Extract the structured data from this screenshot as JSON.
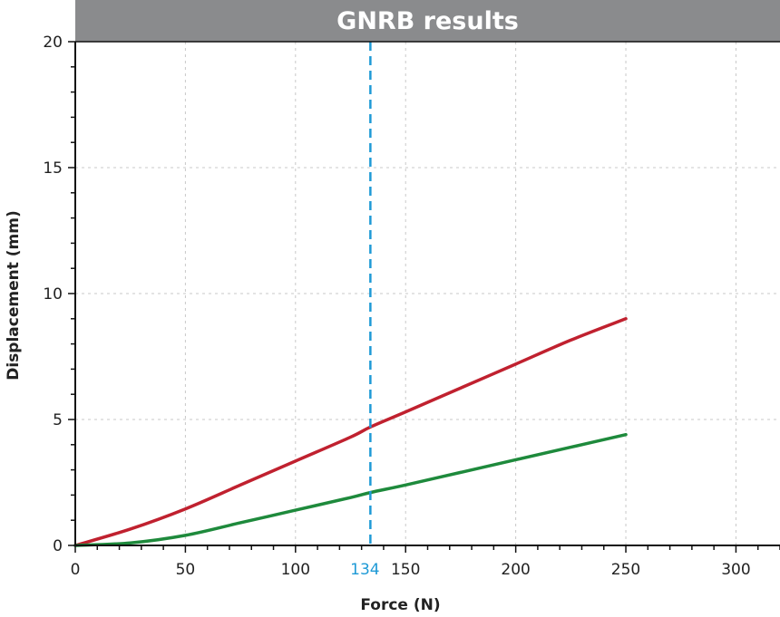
{
  "chart_data": {
    "type": "line",
    "title": "GNRB results",
    "xlabel": "Force (N)",
    "ylabel": "Displacement (mm)",
    "xlim": [
      0,
      320
    ],
    "ylim": [
      0,
      20
    ],
    "x_ticks": [
      0,
      50,
      100,
      150,
      200,
      250,
      300
    ],
    "y_ticks": [
      0,
      5,
      10,
      15,
      20
    ],
    "grid": true,
    "series": [
      {
        "color": "#c0212f",
        "x": [
          0,
          25,
          50,
          75,
          100,
          125,
          134,
          150,
          175,
          200,
          225,
          250
        ],
        "y": [
          0,
          0.65,
          1.45,
          2.4,
          3.35,
          4.3,
          4.7,
          5.3,
          6.25,
          7.2,
          8.15,
          9.0
        ]
      },
      {
        "color": "#1e8a3c",
        "x": [
          0,
          25,
          50,
          75,
          100,
          125,
          134,
          150,
          175,
          200,
          225,
          250
        ],
        "y": [
          0,
          0.1,
          0.4,
          0.9,
          1.4,
          1.9,
          2.1,
          2.4,
          2.9,
          3.4,
          3.9,
          4.4
        ]
      }
    ],
    "reference_line": {
      "x": 134,
      "label": "134",
      "color": "#1e9ad6",
      "style": "dashed"
    }
  }
}
